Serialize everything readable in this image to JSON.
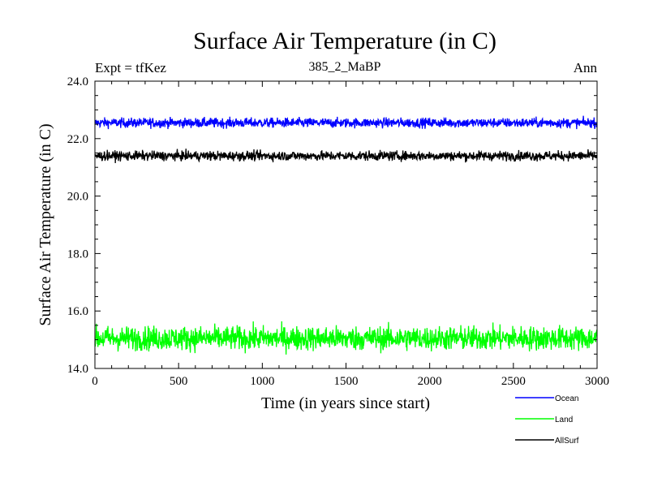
{
  "chart_data": {
    "type": "line",
    "title": "Surface Air Temperature (in C)",
    "subtitle": "385_2_MaBP",
    "left_note": "Expt = tfKez",
    "right_note": "Ann",
    "xlabel": "Time (in years since start)",
    "ylabel": "Surface Air Temperature (in C)",
    "xlim": [
      0,
      3000
    ],
    "ylim": [
      14.0,
      24.0
    ],
    "x_ticks": [
      0,
      500,
      1000,
      1500,
      2000,
      2500,
      3000
    ],
    "x_tick_labels": [
      "0",
      "500",
      "1000",
      "1500",
      "2000",
      "2500",
      "3000"
    ],
    "y_ticks": [
      14.0,
      16.0,
      18.0,
      20.0,
      22.0,
      24.0
    ],
    "y_tick_labels": [
      "14.0",
      "16.0",
      "18.0",
      "20.0",
      "22.0",
      "24.0"
    ],
    "legend_position": "bottom-right-outside",
    "grid": false,
    "series": [
      {
        "name": "Ocean",
        "color": "#0000ff",
        "mean": 22.55,
        "noise_amplitude": 0.12,
        "x_range": [
          0,
          3000
        ]
      },
      {
        "name": "Land",
        "color": "#00ff00",
        "mean": 15.05,
        "noise_amplitude": 0.3,
        "x_range": [
          0,
          3000
        ]
      },
      {
        "name": "AllSurf",
        "color": "#000000",
        "mean": 21.4,
        "noise_amplitude": 0.12,
        "x_range": [
          0,
          3000
        ]
      }
    ]
  }
}
